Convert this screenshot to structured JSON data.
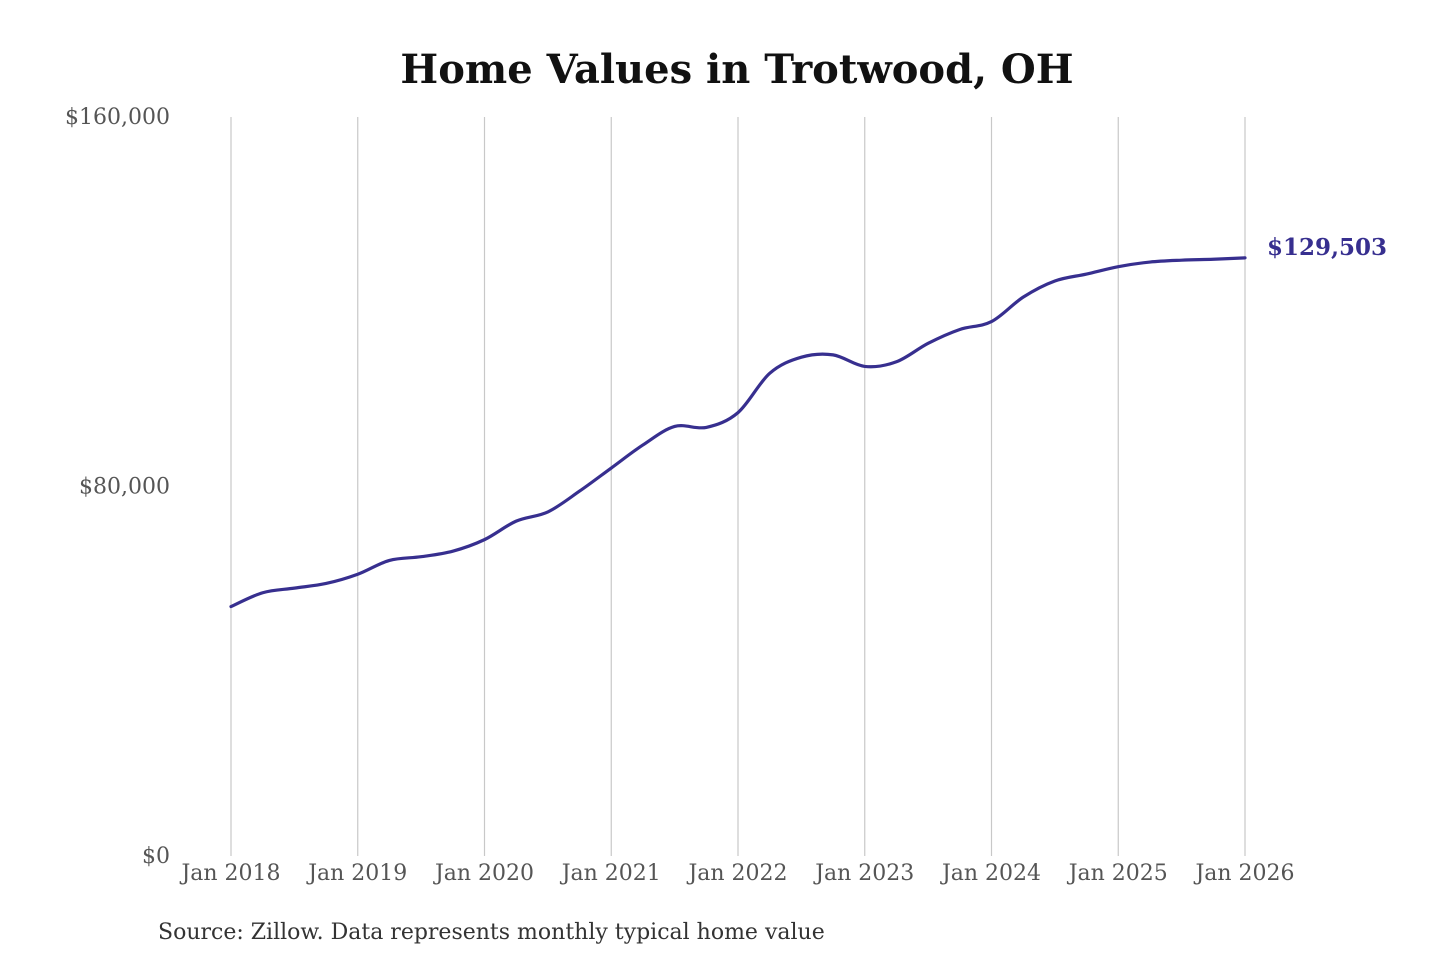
{
  "chart_data": {
    "type": "line",
    "title": "Home Values in Trotwood, OH",
    "xlabel": "",
    "ylabel": "",
    "x_ticks": [
      "Jan 2018",
      "Jan 2019",
      "Jan 2020",
      "Jan 2021",
      "Jan 2022",
      "Jan 2023",
      "Jan 2024",
      "Jan 2025",
      "Jan 2026"
    ],
    "y_ticks": [
      "$0",
      "$80,000",
      "$160,000"
    ],
    "ylim": [
      0,
      160000
    ],
    "xlim": [
      2018.0,
      2026.0
    ],
    "grid": "vertical",
    "series": [
      {
        "color": "#372f8f",
        "x": [
          2018.0,
          2018.25,
          2018.5,
          2018.75,
          2019.0,
          2019.25,
          2019.5,
          2019.75,
          2020.0,
          2020.25,
          2020.5,
          2020.75,
          2021.0,
          2021.25,
          2021.5,
          2021.75,
          2022.0,
          2022.25,
          2022.5,
          2022.75,
          2023.0,
          2023.25,
          2023.5,
          2023.75,
          2024.0,
          2024.25,
          2024.5,
          2024.75,
          2025.0,
          2025.25,
          2025.5,
          2025.75,
          2026.0
        ],
        "values": [
          54000,
          57000,
          58000,
          59000,
          61000,
          64000,
          64800,
          66000,
          68500,
          72500,
          74500,
          79000,
          84000,
          89000,
          93000,
          92800,
          96000,
          104500,
          108000,
          108500,
          106000,
          107000,
          111000,
          114000,
          115700,
          121000,
          124500,
          126000,
          127600,
          128600,
          129000,
          129200,
          129503
        ],
        "end_label": "$129,503"
      }
    ]
  },
  "source_note": "Source: Zillow. Data represents monthly typical home value"
}
